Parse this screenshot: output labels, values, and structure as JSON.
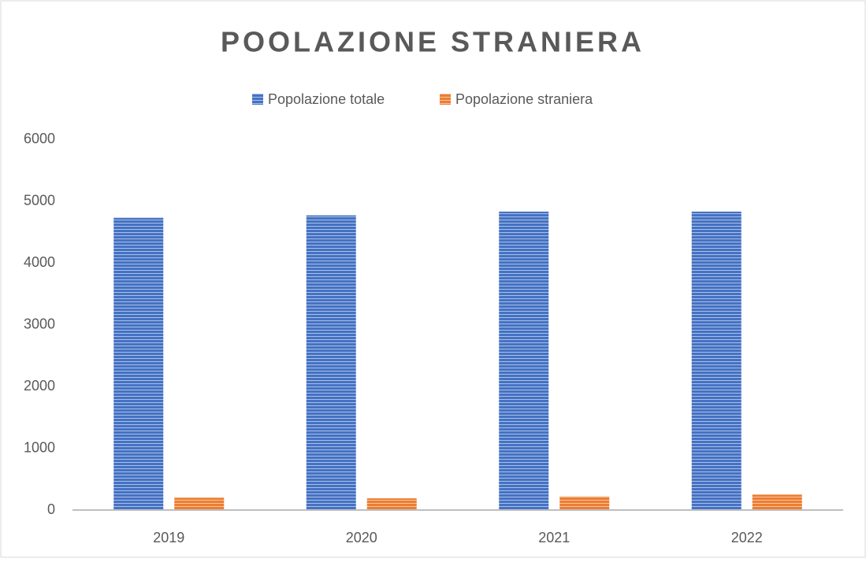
{
  "chart_data": {
    "type": "bar",
    "title": "POOLAZIONE STRANIERA",
    "categories": [
      "2019",
      "2020",
      "2021",
      "2022"
    ],
    "series": [
      {
        "name": "Popolazione totale",
        "color": "#4472c4",
        "values": [
          4730,
          4770,
          4830,
          4830
        ]
      },
      {
        "name": "Popolazione straniera",
        "color": "#ed7d31",
        "values": [
          200,
          190,
          220,
          250
        ]
      }
    ],
    "ylim": [
      0,
      6000
    ],
    "yticks": [
      0,
      1000,
      2000,
      3000,
      4000,
      5000,
      6000
    ],
    "grid": false,
    "legend": "top"
  }
}
